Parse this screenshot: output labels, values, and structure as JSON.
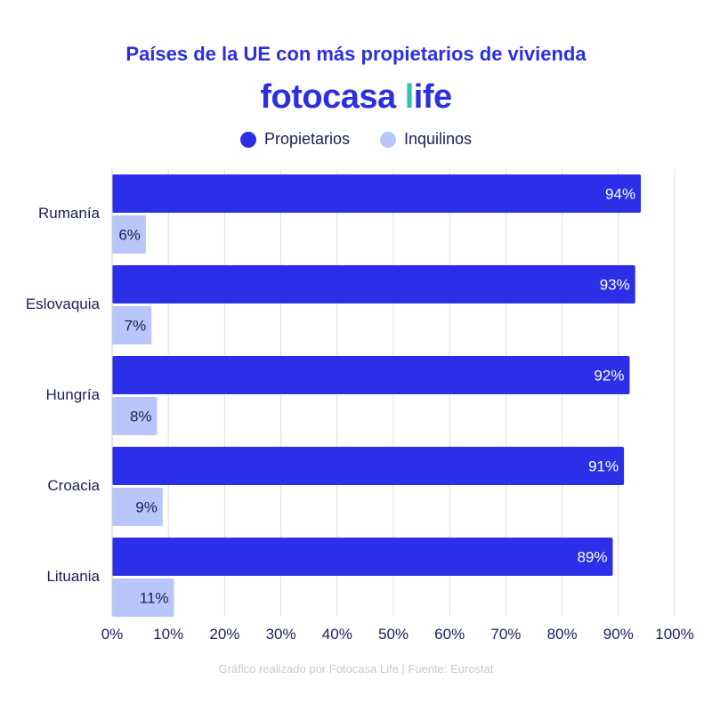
{
  "title": "Países de la UE con más propietarios de vivienda",
  "brand": {
    "name_main": "fotocasa ",
    "name_l": "l",
    "name_rest": "ife"
  },
  "footer": "Gráfico realizado por Fotocasa Life | Fuente: Eurostat",
  "colors": {
    "propietarios": "#2b2fe8",
    "inquilinos": "#b8c6f9",
    "grid": "#dcdce3",
    "text_dark": "#1b1e5c",
    "brand_blue": "#2b2fe0",
    "brand_teal": "#2cc4b5"
  },
  "chart_data": {
    "type": "bar",
    "orientation": "horizontal",
    "title": "Países de la UE con más propietarios de vivienda",
    "categories": [
      "Rumanía",
      "Eslovaquia",
      "Hungría",
      "Croacia",
      "Lituania"
    ],
    "series": [
      {
        "name": "Propietarios",
        "values": [
          94,
          93,
          92,
          91,
          89
        ],
        "labels": [
          "94%",
          "93%",
          "92%",
          "91%",
          "89%"
        ]
      },
      {
        "name": "Inquilinos",
        "values": [
          6,
          7,
          8,
          9,
          11
        ],
        "labels": [
          "6%",
          "7%",
          "8%",
          "9%",
          "11%"
        ]
      }
    ],
    "xlim": [
      0,
      100
    ],
    "xticks": [
      "0%",
      "10%",
      "20%",
      "30%",
      "40%",
      "50%",
      "60%",
      "70%",
      "80%",
      "90%",
      "100%"
    ],
    "xlabel": "",
    "ylabel": "",
    "grid": "vertical",
    "legend_position": "top-center"
  }
}
